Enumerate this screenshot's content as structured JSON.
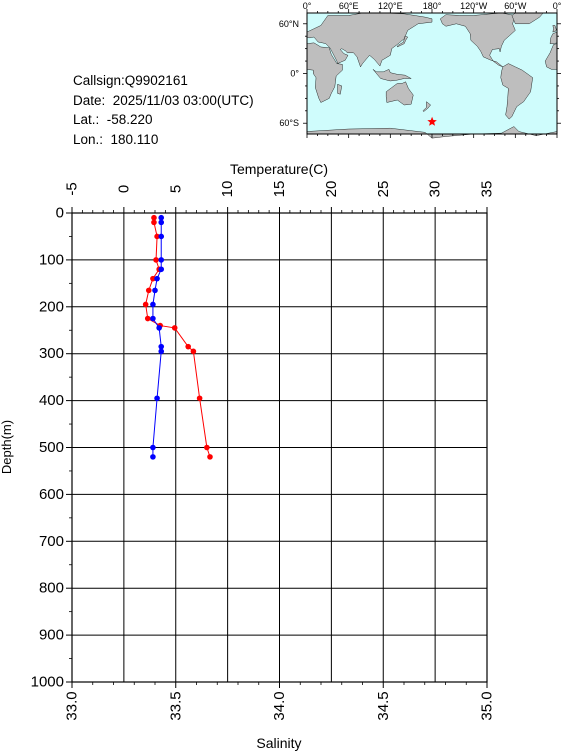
{
  "info": {
    "callsign": "Callsign:Q9902161",
    "date": "Date:  2025/11/03 03:00(UTC)",
    "lat": "Lat.:  -58.220",
    "lon": "Lon.:  180.110"
  },
  "map": {
    "top_labels": [
      "0°",
      "60°E",
      "120°E",
      "180°",
      "120°W",
      "60°W",
      "0°"
    ],
    "left_labels": [
      "60°N",
      "0°",
      "60°S"
    ],
    "ocean_color": "#cffcfc",
    "land_color": "#bebebe",
    "marker": {
      "lon": 180.11,
      "lat": -58.22,
      "color": "#ff0000",
      "icon": "star-icon"
    }
  },
  "chart_data": {
    "type": "line",
    "top_axis_label": "Temperature(C)",
    "bottom_axis_label": "Salinity",
    "y_axis_label": "Depth(m)",
    "temperature_range": [
      -5,
      35
    ],
    "temperature_ticks": [
      "-5",
      "0",
      "5",
      "10",
      "15",
      "20",
      "25",
      "30",
      "35"
    ],
    "salinity_range": [
      33.0,
      35.0
    ],
    "salinity_ticks": [
      "33.0",
      "33.5",
      "34.0",
      "34.5",
      "35.0"
    ],
    "depth_range": [
      0,
      1000
    ],
    "depth_ticks": [
      "0",
      "100",
      "200",
      "300",
      "400",
      "500",
      "600",
      "700",
      "800",
      "900",
      "1000"
    ],
    "grid": true,
    "series": [
      {
        "axis": "temperature",
        "color": "#ff0000",
        "points": [
          {
            "depth": 10,
            "value": 2.9
          },
          {
            "depth": 20,
            "value": 2.9
          },
          {
            "depth": 50,
            "value": 3.2
          },
          {
            "depth": 100,
            "value": 3.1
          },
          {
            "depth": 120,
            "value": 3.4
          },
          {
            "depth": 140,
            "value": 2.8
          },
          {
            "depth": 165,
            "value": 2.4
          },
          {
            "depth": 195,
            "value": 2.1
          },
          {
            "depth": 225,
            "value": 2.3
          },
          {
            "depth": 240,
            "value": 3.5
          },
          {
            "depth": 245,
            "value": 4.9
          },
          {
            "depth": 285,
            "value": 6.2
          },
          {
            "depth": 295,
            "value": 6.7
          },
          {
            "depth": 395,
            "value": 7.3
          },
          {
            "depth": 500,
            "value": 8.0
          },
          {
            "depth": 520,
            "value": 8.3
          }
        ]
      },
      {
        "axis": "salinity",
        "color": "#0000ff",
        "points": [
          {
            "depth": 10,
            "value": 33.43
          },
          {
            "depth": 20,
            "value": 33.43
          },
          {
            "depth": 50,
            "value": 33.43
          },
          {
            "depth": 100,
            "value": 33.43
          },
          {
            "depth": 120,
            "value": 33.43
          },
          {
            "depth": 140,
            "value": 33.41
          },
          {
            "depth": 165,
            "value": 33.4
          },
          {
            "depth": 195,
            "value": 33.39
          },
          {
            "depth": 225,
            "value": 33.39
          },
          {
            "depth": 245,
            "value": 33.42
          },
          {
            "depth": 285,
            "value": 33.43
          },
          {
            "depth": 295,
            "value": 33.43
          },
          {
            "depth": 395,
            "value": 33.41
          },
          {
            "depth": 500,
            "value": 33.39
          },
          {
            "depth": 520,
            "value": 33.39
          }
        ]
      }
    ]
  }
}
